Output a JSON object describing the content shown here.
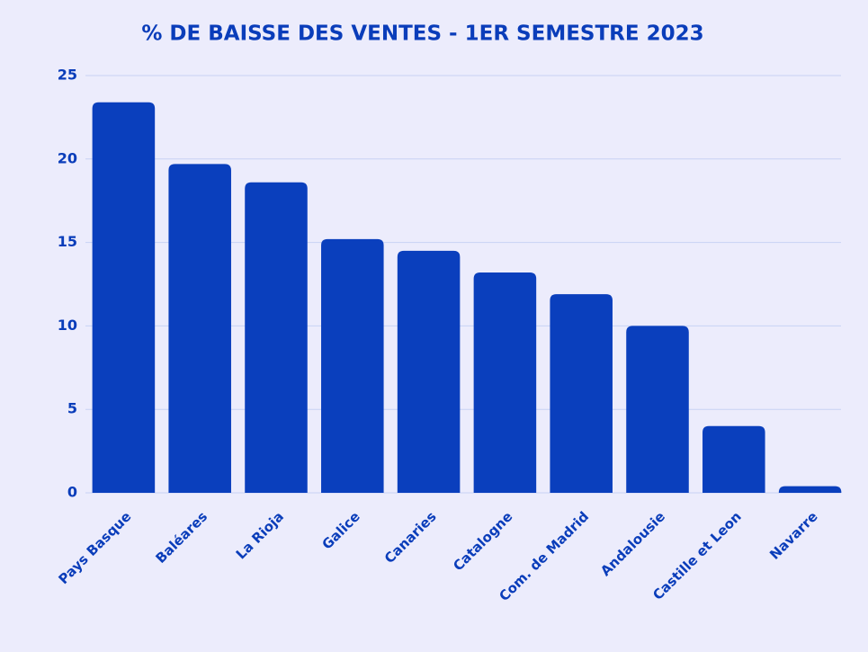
{
  "chart_data": {
    "type": "bar",
    "title": "% DE BAISSE DES VENTES - 1ER SEMESTRE 2023",
    "categories": [
      "Pays Basque",
      "Baléares",
      "La Rioja",
      "Galice",
      "Canaries",
      "Catalogne",
      "Com. de Madrid",
      "Andalousie",
      "Castille et Leon",
      "Navarre"
    ],
    "values": [
      23.4,
      19.7,
      18.6,
      15.2,
      14.5,
      13.2,
      11.9,
      10,
      4,
      0.4
    ],
    "color": "#0a3fbd",
    "ylim": [
      0,
      25
    ],
    "yticks": [
      0,
      5,
      10,
      15,
      20,
      25
    ],
    "grid": true
  }
}
